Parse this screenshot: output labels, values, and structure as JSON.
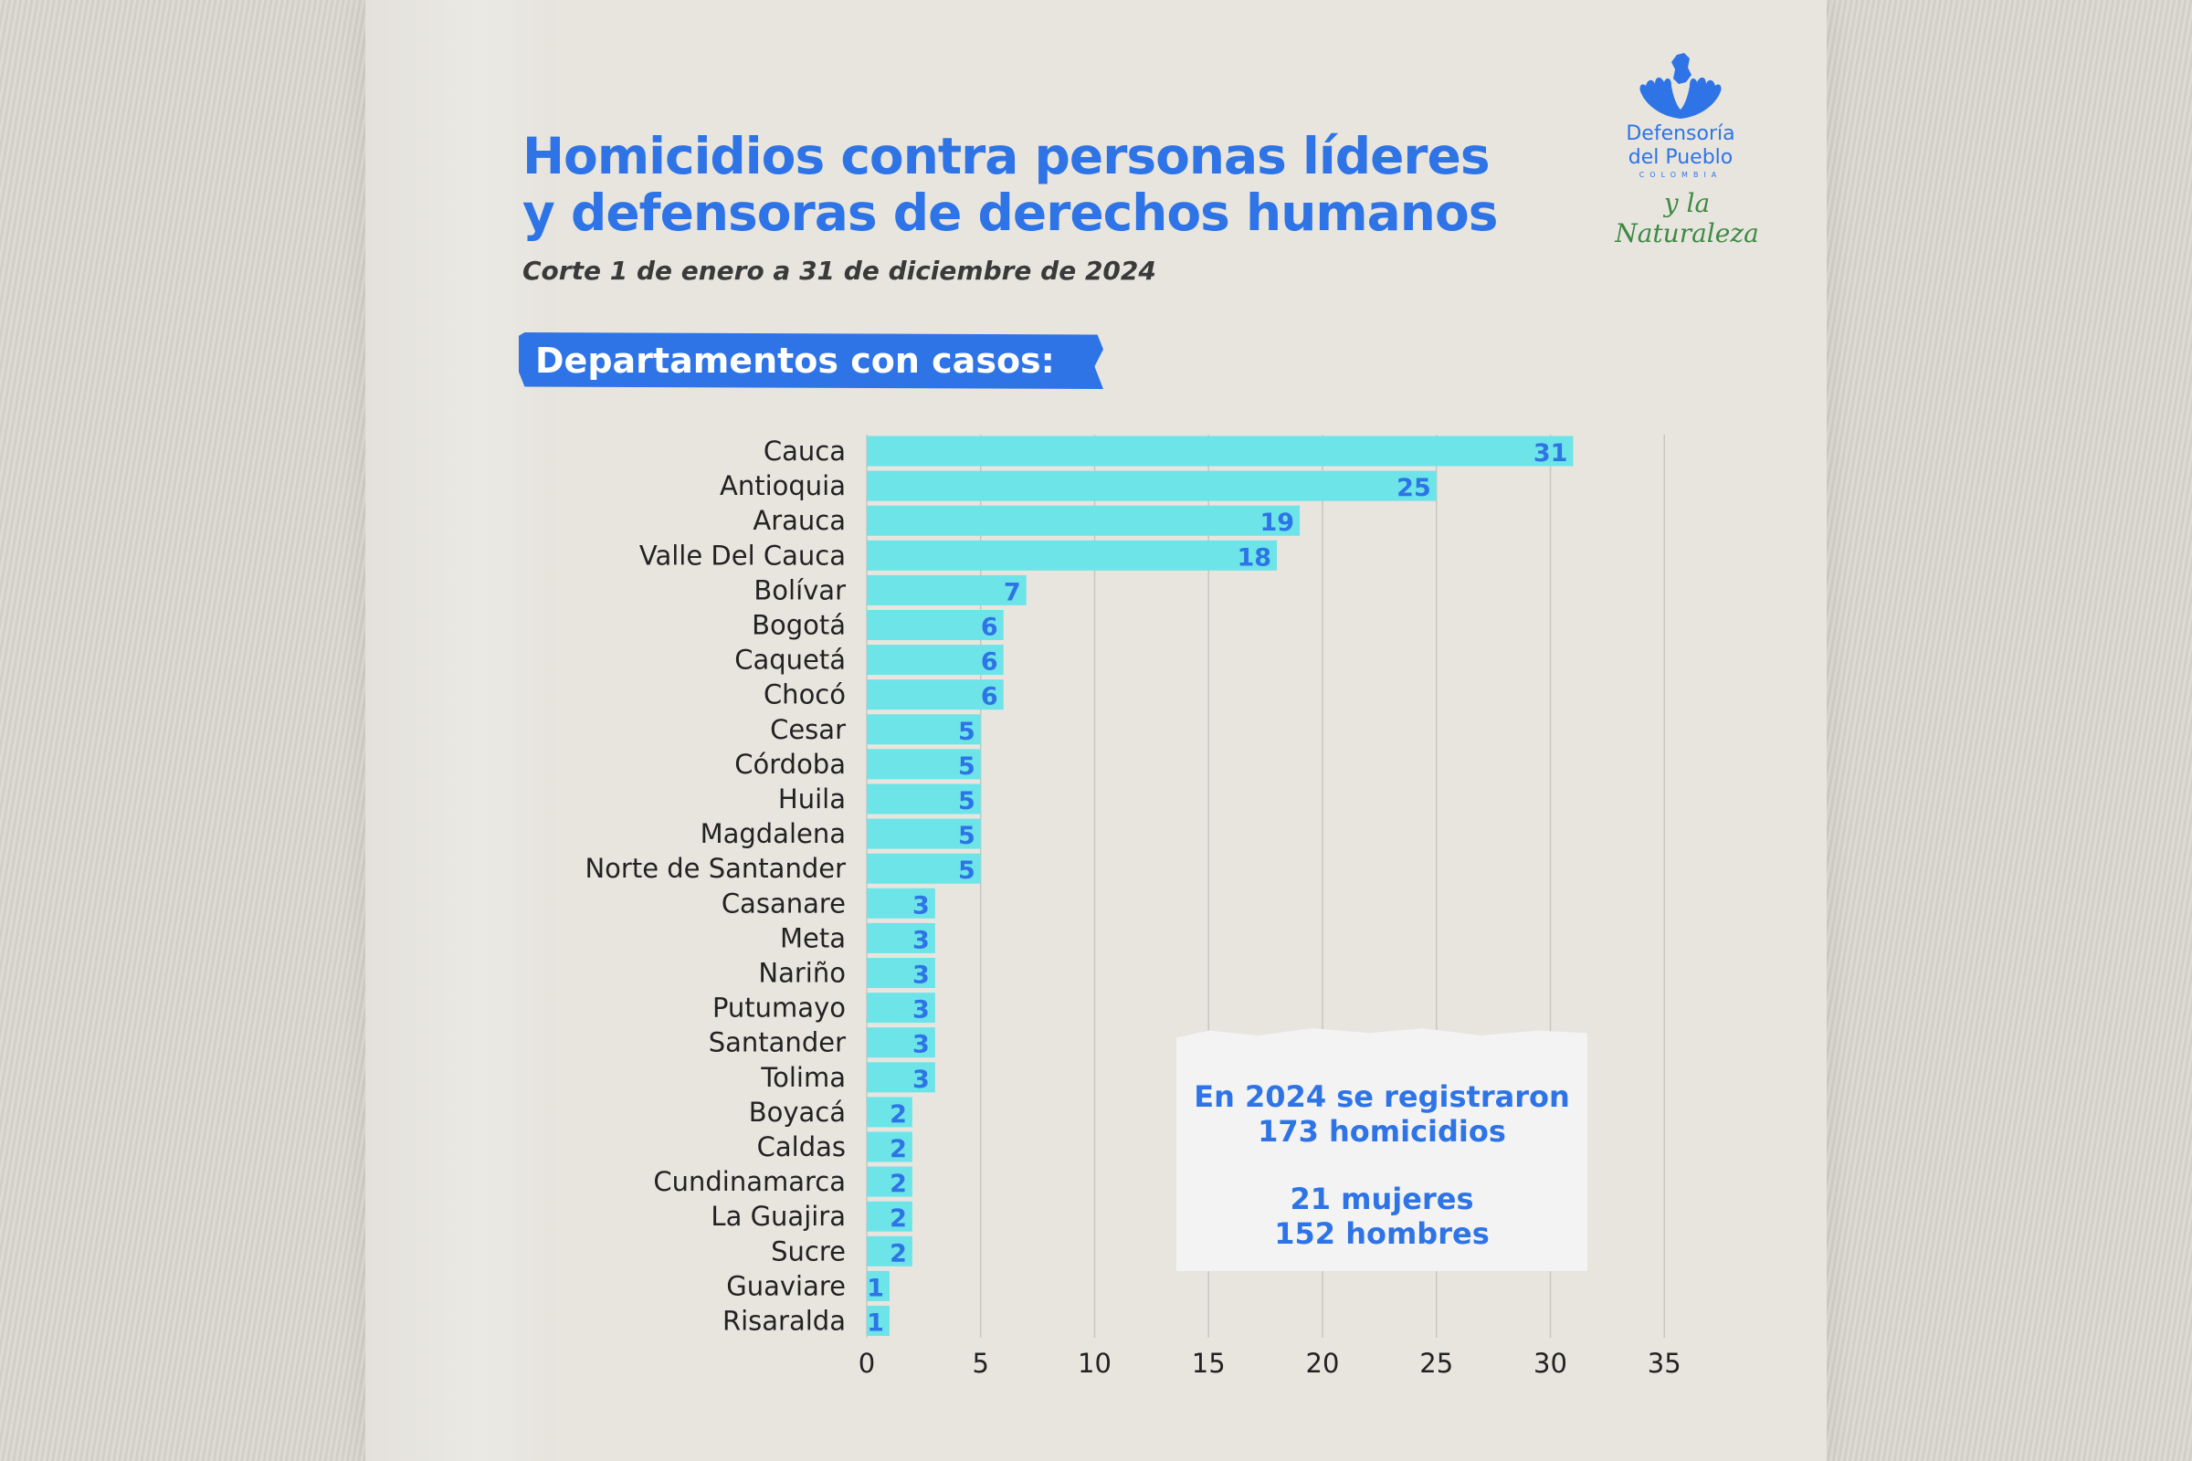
{
  "header": {
    "title_line1": "Homicidios contra personas líderes",
    "title_line2": "y defensoras de derechos humanos",
    "subtitle": "Corte 1 de enero a 31 de diciembre de 2024",
    "section_label": "Departamentos con casos:"
  },
  "logo": {
    "name_line1": "Defensoría",
    "name_line2": "del Pueblo",
    "country": "COLOMBIA",
    "tagline": "y la Naturaleza"
  },
  "note": {
    "line1": "En 2024 se registraron",
    "line2": "173 homicidios",
    "line3": "21 mujeres",
    "line4": "152 hombres"
  },
  "colors": {
    "bar": "#6de4e8",
    "value_label": "#2e74e6",
    "title": "#2e74e6",
    "grid": "#c9c6c0",
    "category_text": "#222222"
  },
  "chart_data": {
    "type": "bar",
    "orientation": "horizontal",
    "categories": [
      "Cauca",
      "Antioquia",
      "Arauca",
      "Valle Del Cauca",
      "Bolívar",
      "Bogotá",
      "Caquetá",
      "Chocó",
      "Cesar",
      "Córdoba",
      "Huila",
      "Magdalena",
      "Norte de Santander",
      "Casanare",
      "Meta",
      "Nariño",
      "Putumayo",
      "Santander",
      "Tolima",
      "Boyacá",
      "Caldas",
      "Cundinamarca",
      "La Guajira",
      "Sucre",
      "Guaviare",
      "Risaralda"
    ],
    "values": [
      31,
      25,
      19,
      18,
      7,
      6,
      6,
      6,
      5,
      5,
      5,
      5,
      5,
      3,
      3,
      3,
      3,
      3,
      3,
      2,
      2,
      2,
      2,
      2,
      1,
      1
    ],
    "xticks": [
      0,
      5,
      10,
      15,
      20,
      25,
      30,
      35
    ],
    "xlim": [
      0,
      35
    ],
    "grid": true,
    "data_labels": true
  }
}
